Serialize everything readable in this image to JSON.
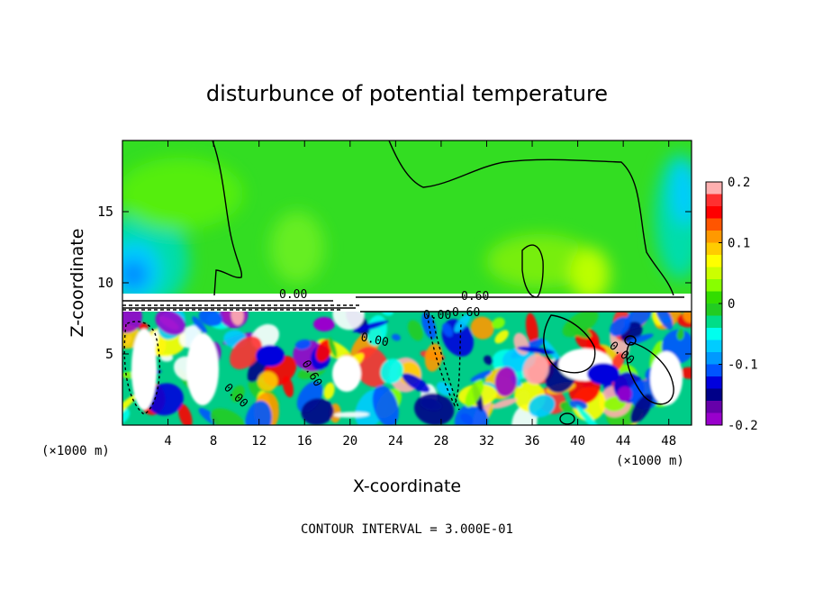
{
  "chart_data": {
    "type": "heatmap",
    "title": "disturbunce of potential temperature",
    "xlabel": "X-coordinate",
    "ylabel": "Z-coordinate",
    "x_unit": "(×1000 m)",
    "y_unit": "(×1000 m)",
    "xlim": [
      0,
      50
    ],
    "ylim": [
      0,
      20
    ],
    "x_ticks": [
      4,
      8,
      12,
      16,
      20,
      24,
      28,
      32,
      36,
      40,
      44,
      48
    ],
    "y_ticks": [
      5,
      10,
      15
    ],
    "colorbar": {
      "range": [
        -0.2,
        0.2
      ],
      "tick_labels": [
        "0.2",
        "0.1",
        "0",
        "-0.1",
        "-0.2"
      ],
      "tick_values": [
        0.2,
        0.1,
        0,
        -0.1,
        -0.2
      ],
      "colors": [
        "#ffb0b0",
        "#ff3030",
        "#ff0000",
        "#ff5500",
        "#ff9900",
        "#ffcc00",
        "#ffff00",
        "#ccff00",
        "#88ff00",
        "#33dd00",
        "#22cc22",
        "#00dd88",
        "#00ffee",
        "#00ccff",
        "#0099ff",
        "#0055ff",
        "#0000dd",
        "#000088",
        "#6600aa",
        "#9900cc"
      ]
    },
    "contour_labels": [
      "0.00",
      "0.60",
      "0.60",
      "0.00",
      "0.00",
      "0.60",
      "0.00",
      "0.00"
    ],
    "contour_interval_text": "CONTOUR INTERVAL = 3.000E-01",
    "inversion_height": 8
  }
}
